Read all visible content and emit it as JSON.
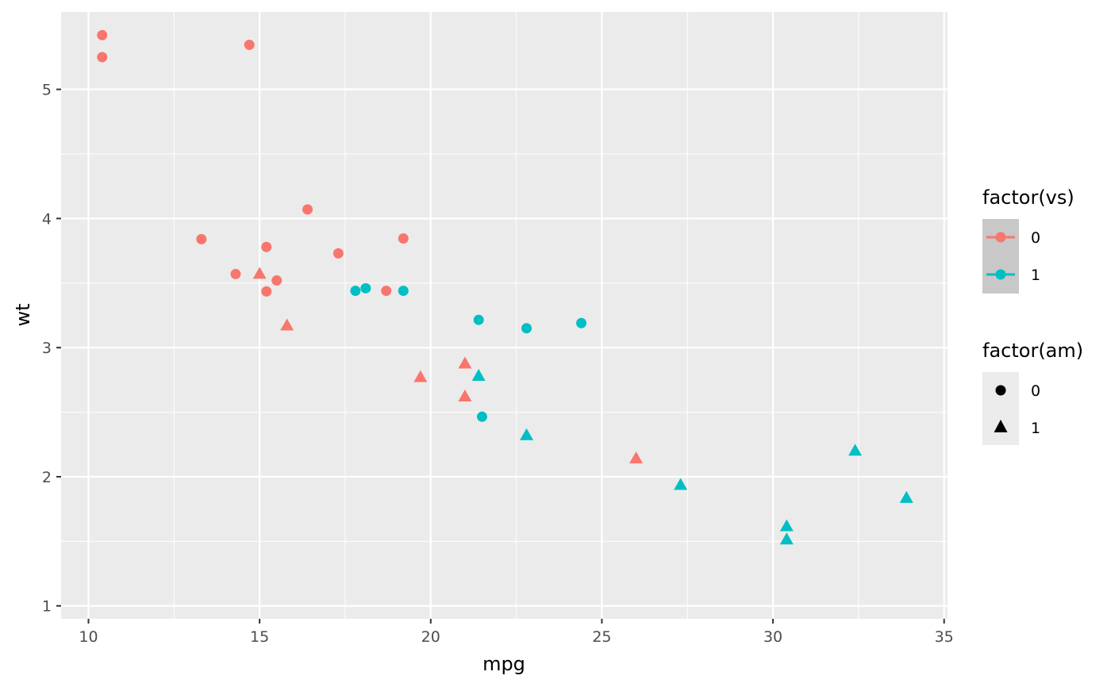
{
  "chart_data": {
    "type": "scatter",
    "title": "",
    "xlabel": "mpg",
    "ylabel": "wt",
    "xlim": [
      9.2,
      35.1
    ],
    "ylim": [
      0.9,
      5.6
    ],
    "x_ticks": [
      10,
      15,
      20,
      25,
      30,
      35
    ],
    "y_ticks": [
      1,
      2,
      3,
      4,
      5
    ],
    "grid": true,
    "legend_placement": "right",
    "colors": {
      "vs_0": "#F8766D",
      "vs_1": "#00BFC4",
      "panel": "#EBEBEB",
      "grid": "#FFFFFF"
    },
    "legends": [
      {
        "title": "factor(vs)",
        "aesthetic": "color",
        "entries": [
          {
            "label": "0",
            "color": "#F8766D"
          },
          {
            "label": "1",
            "color": "#00BFC4"
          }
        ]
      },
      {
        "title": "factor(am)",
        "aesthetic": "shape",
        "entries": [
          {
            "label": "0",
            "shape": "circle"
          },
          {
            "label": "1",
            "shape": "triangle"
          }
        ]
      }
    ],
    "points": [
      {
        "x": 10.4,
        "y": 5.42,
        "vs": "0",
        "am": "0"
      },
      {
        "x": 10.4,
        "y": 5.25,
        "vs": "0",
        "am": "0"
      },
      {
        "x": 14.7,
        "y": 5.345,
        "vs": "0",
        "am": "0"
      },
      {
        "x": 16.4,
        "y": 4.07,
        "vs": "0",
        "am": "0"
      },
      {
        "x": 13.3,
        "y": 3.84,
        "vs": "0",
        "am": "0"
      },
      {
        "x": 19.2,
        "y": 3.845,
        "vs": "0",
        "am": "0"
      },
      {
        "x": 15.2,
        "y": 3.78,
        "vs": "0",
        "am": "0"
      },
      {
        "x": 17.3,
        "y": 3.73,
        "vs": "0",
        "am": "0"
      },
      {
        "x": 14.3,
        "y": 3.57,
        "vs": "0",
        "am": "0"
      },
      {
        "x": 15.5,
        "y": 3.52,
        "vs": "0",
        "am": "0"
      },
      {
        "x": 15.2,
        "y": 3.435,
        "vs": "0",
        "am": "0"
      },
      {
        "x": 18.7,
        "y": 3.44,
        "vs": "0",
        "am": "0"
      },
      {
        "x": 15.0,
        "y": 3.57,
        "vs": "0",
        "am": "1"
      },
      {
        "x": 15.8,
        "y": 3.17,
        "vs": "0",
        "am": "1"
      },
      {
        "x": 19.7,
        "y": 2.77,
        "vs": "0",
        "am": "1"
      },
      {
        "x": 21.0,
        "y": 2.875,
        "vs": "0",
        "am": "1"
      },
      {
        "x": 21.0,
        "y": 2.62,
        "vs": "0",
        "am": "1"
      },
      {
        "x": 26.0,
        "y": 2.14,
        "vs": "0",
        "am": "1"
      },
      {
        "x": 17.8,
        "y": 3.44,
        "vs": "1",
        "am": "0"
      },
      {
        "x": 18.1,
        "y": 3.46,
        "vs": "1",
        "am": "0"
      },
      {
        "x": 19.2,
        "y": 3.44,
        "vs": "1",
        "am": "0"
      },
      {
        "x": 21.4,
        "y": 3.215,
        "vs": "1",
        "am": "0"
      },
      {
        "x": 22.8,
        "y": 3.15,
        "vs": "1",
        "am": "0"
      },
      {
        "x": 24.4,
        "y": 3.19,
        "vs": "1",
        "am": "0"
      },
      {
        "x": 21.5,
        "y": 2.465,
        "vs": "1",
        "am": "0"
      },
      {
        "x": 21.4,
        "y": 2.78,
        "vs": "1",
        "am": "1"
      },
      {
        "x": 22.8,
        "y": 2.32,
        "vs": "1",
        "am": "1"
      },
      {
        "x": 27.3,
        "y": 1.935,
        "vs": "1",
        "am": "1"
      },
      {
        "x": 32.4,
        "y": 2.2,
        "vs": "1",
        "am": "1"
      },
      {
        "x": 33.9,
        "y": 1.835,
        "vs": "1",
        "am": "1"
      },
      {
        "x": 30.4,
        "y": 1.615,
        "vs": "1",
        "am": "1"
      },
      {
        "x": 30.4,
        "y": 1.513,
        "vs": "1",
        "am": "1"
      }
    ]
  }
}
